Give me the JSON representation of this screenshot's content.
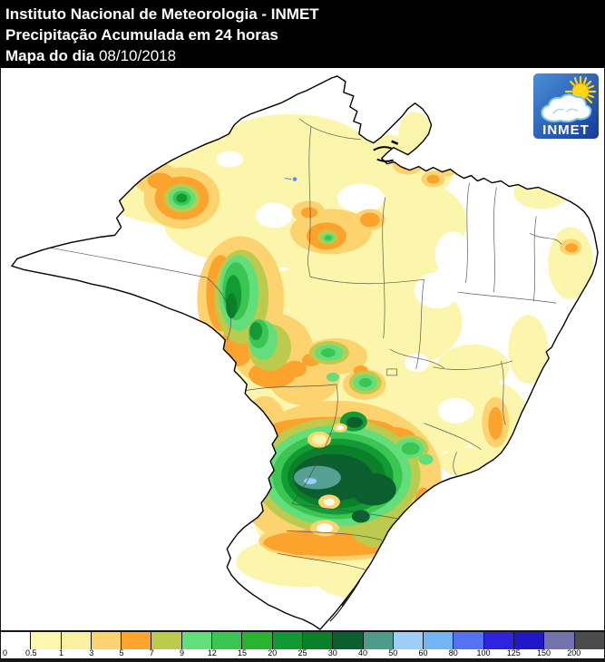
{
  "header": {
    "line1": "Instituto Nacional de Meteorologia - INMET",
    "line2": "Precipitação Acumulada em 24 horas",
    "line3_label": "Mapa do dia",
    "line3_date": "08/10/2018"
  },
  "logo": {
    "text": "INMET",
    "background": "#2867c8",
    "sun_color": "#ffd514",
    "cloud_color": "#ffffff"
  },
  "legend": {
    "labels": [
      "0",
      "0.5",
      "1",
      "3",
      "5",
      "7",
      "9",
      "12",
      "15",
      "20",
      "25",
      "30",
      "40",
      "50",
      "60",
      "80",
      "100",
      "125",
      "150",
      "200"
    ],
    "colors": [
      "#FFFFFF",
      "#FCF8B0",
      "#FAF1A0",
      "#FDD36F",
      "#FCA42D",
      "#BCCA4E",
      "#62DF7A",
      "#3BC553",
      "#28B42E",
      "#119A33",
      "#0A8128",
      "#0B5F2E",
      "#4D9B8A",
      "#9CCEF8",
      "#72B4F4",
      "#5573F0",
      "#3023DD",
      "#2018C8",
      "#7573AE",
      "#4C4C4C"
    ]
  }
}
